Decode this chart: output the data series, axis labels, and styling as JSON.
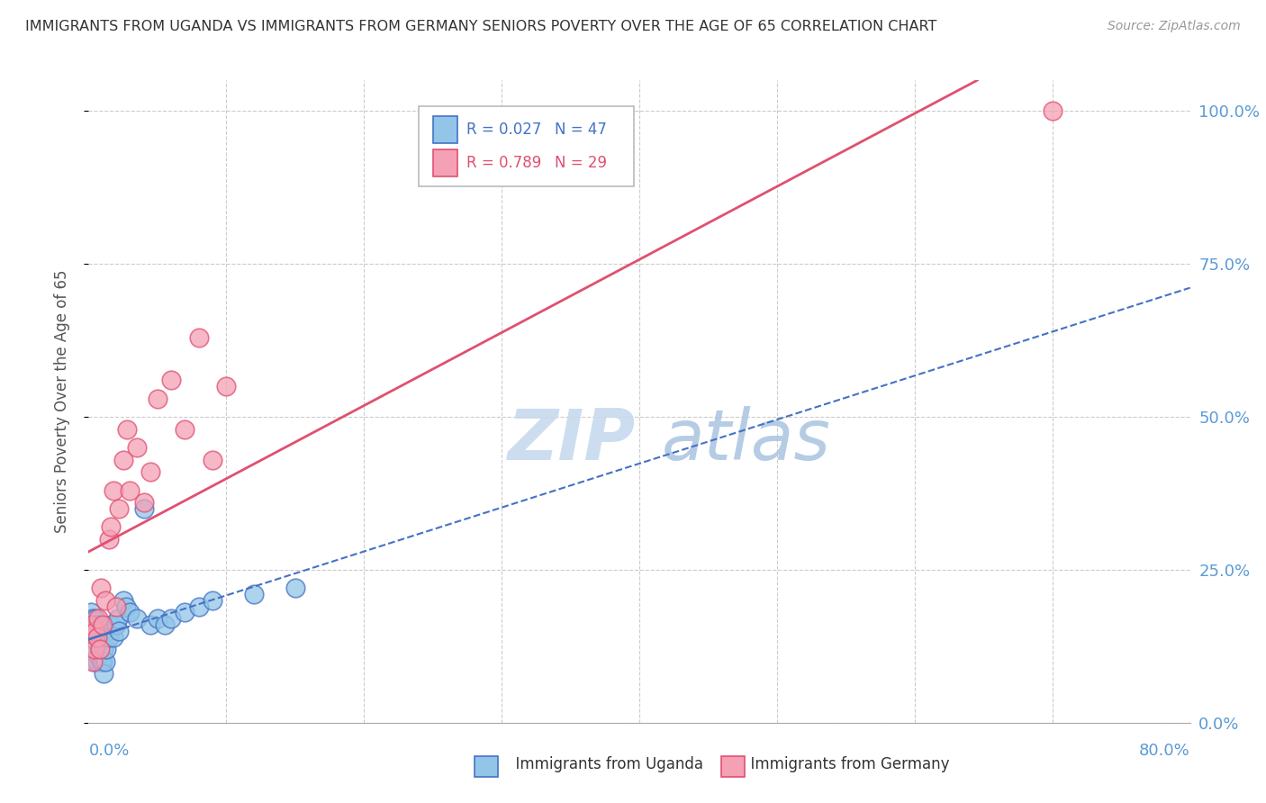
{
  "title": "IMMIGRANTS FROM UGANDA VS IMMIGRANTS FROM GERMANY SENIORS POVERTY OVER THE AGE OF 65 CORRELATION CHART",
  "source": "Source: ZipAtlas.com",
  "ylabel": "Seniors Poverty Over the Age of 65",
  "color_uganda": "#92C5E8",
  "color_germany": "#F4A0B5",
  "color_uganda_line": "#4472C4",
  "color_germany_line": "#E05070",
  "watermark_zip": "#C8DCF0",
  "watermark_atlas": "#B0C8E8",
  "background_color": "#FFFFFF",
  "legend_uganda_R": "R = 0.027",
  "legend_uganda_N": "N = 47",
  "legend_germany_R": "R = 0.789",
  "legend_germany_N": "N = 29",
  "uganda_x": [
    0.001,
    0.002,
    0.002,
    0.003,
    0.003,
    0.003,
    0.004,
    0.004,
    0.004,
    0.005,
    0.005,
    0.005,
    0.006,
    0.006,
    0.006,
    0.007,
    0.007,
    0.008,
    0.008,
    0.009,
    0.009,
    0.01,
    0.01,
    0.011,
    0.011,
    0.012,
    0.013,
    0.015,
    0.016,
    0.018,
    0.02,
    0.021,
    0.022,
    0.025,
    0.027,
    0.03,
    0.035,
    0.04,
    0.045,
    0.05,
    0.055,
    0.06,
    0.07,
    0.08,
    0.09,
    0.12,
    0.15
  ],
  "uganda_y": [
    0.16,
    0.14,
    0.18,
    0.12,
    0.15,
    0.17,
    0.1,
    0.14,
    0.16,
    0.12,
    0.15,
    0.17,
    0.1,
    0.13,
    0.16,
    0.11,
    0.14,
    0.12,
    0.15,
    0.1,
    0.14,
    0.1,
    0.14,
    0.08,
    0.12,
    0.1,
    0.12,
    0.14,
    0.16,
    0.14,
    0.16,
    0.17,
    0.15,
    0.2,
    0.19,
    0.18,
    0.17,
    0.35,
    0.16,
    0.17,
    0.16,
    0.17,
    0.18,
    0.19,
    0.2,
    0.21,
    0.22
  ],
  "germany_x": [
    0.001,
    0.002,
    0.003,
    0.004,
    0.005,
    0.006,
    0.007,
    0.008,
    0.009,
    0.01,
    0.012,
    0.015,
    0.016,
    0.018,
    0.02,
    0.022,
    0.025,
    0.028,
    0.03,
    0.035,
    0.04,
    0.045,
    0.05,
    0.06,
    0.07,
    0.08,
    0.09,
    0.1,
    0.7
  ],
  "germany_y": [
    0.14,
    0.16,
    0.1,
    0.12,
    0.15,
    0.14,
    0.17,
    0.12,
    0.22,
    0.16,
    0.2,
    0.3,
    0.32,
    0.38,
    0.19,
    0.35,
    0.43,
    0.48,
    0.38,
    0.45,
    0.36,
    0.41,
    0.53,
    0.56,
    0.48,
    0.63,
    0.43,
    0.55,
    1.0
  ],
  "xlim": [
    0.0,
    0.8
  ],
  "ylim": [
    0.0,
    1.05
  ],
  "yticks": [
    0.0,
    0.25,
    0.5,
    0.75,
    1.0
  ],
  "ytick_labels": [
    "0.0%",
    "25.0%",
    "50.0%",
    "75.0%",
    "100.0%"
  ],
  "xtick_label_left": "0.0%",
  "xtick_label_right": "80.0%"
}
